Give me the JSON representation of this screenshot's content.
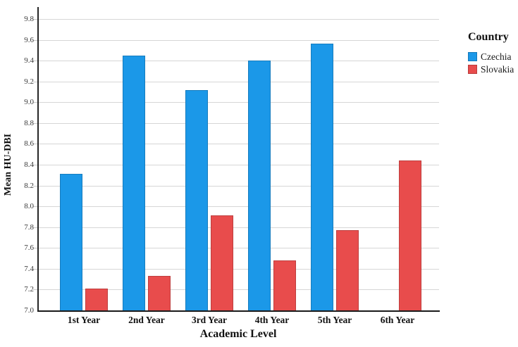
{
  "chart_data": {
    "type": "bar",
    "title": "",
    "xlabel": "Academic Level",
    "ylabel": "Mean HU-DBI",
    "categories": [
      "1st Year",
      "2nd Year",
      "3rd Year",
      "4th Year",
      "5th Year",
      "6th Year"
    ],
    "series": [
      {
        "name": "Czechia",
        "color": "#1b98e8",
        "values": [
          8.31,
          9.45,
          9.12,
          9.4,
          9.56,
          null
        ]
      },
      {
        "name": "Slovakia",
        "color": "#e84c4c",
        "values": [
          7.21,
          7.33,
          7.91,
          7.48,
          7.77,
          8.44
        ]
      }
    ],
    "ylim": [
      7.0,
      9.8
    ],
    "ytick_step": 0.2,
    "ytick_labels": [
      "7.0",
      "7.2",
      "7.4",
      "7.6",
      "7.8",
      "8.0",
      "8.2",
      "8.4",
      "8.6",
      "8.8",
      "9.0",
      "9.2",
      "9.4",
      "9.6",
      "9.8"
    ],
    "grid": "horizontal",
    "legend_title": "Country",
    "legend_position": "top-right",
    "colors": {
      "axis": "#1a1a1a",
      "gridline": "#d6d6d6",
      "background": "#ffffff"
    }
  }
}
